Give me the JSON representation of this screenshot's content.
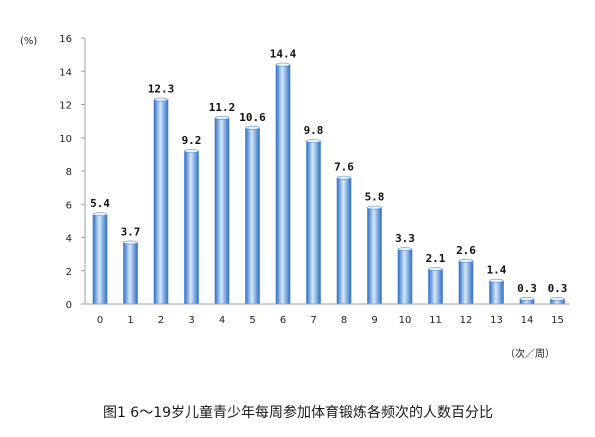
{
  "chart_data": {
    "type": "bar",
    "title": "",
    "caption": "图1  6～19岁儿童青少年每周参加体育锻炼各频次的人数百分比",
    "ylabel_unit": "(%)",
    "xlabel_unit": "（次／周）",
    "categories": [
      "0",
      "1",
      "2",
      "3",
      "4",
      "5",
      "6",
      "7",
      "8",
      "9",
      "10",
      "11",
      "12",
      "13",
      "14",
      "15"
    ],
    "values": [
      5.4,
      3.7,
      12.3,
      9.2,
      11.2,
      10.6,
      14.4,
      9.8,
      7.6,
      5.8,
      3.3,
      2.1,
      2.6,
      1.4,
      0.3,
      0.3
    ],
    "value_labels": [
      "5.4",
      "3.7",
      "12.3",
      "9.2",
      "11.2",
      "10.6",
      "14.4",
      "9.8",
      "7.6",
      "5.8",
      "3.3",
      "2.1",
      "2.6",
      "1.4",
      "0.3",
      "0.3"
    ],
    "ylim": [
      0,
      16
    ],
    "yticks": [
      "0",
      "2",
      "4",
      "6",
      "8",
      "10",
      "12",
      "14",
      "16"
    ],
    "grid": false,
    "legend": "none",
    "colors": {
      "bar_light": "#d6e9fb",
      "bar_mid": "#6fa8e8",
      "bar_dark": "#2f6fc4",
      "axis": "#a0a0a0"
    }
  }
}
